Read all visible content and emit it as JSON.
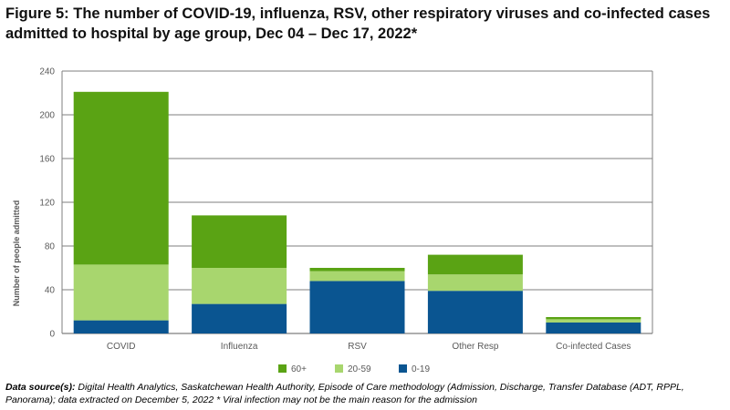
{
  "title": "Figure 5: The number of COVID-19, influenza, RSV, other respiratory viruses and co-infected cases admitted to hospital by age group, Dec 04 – Dec 17, 2022*",
  "source": {
    "label": "Data source(s):",
    "text": " Digital Health Analytics, Saskatchewan Health Authority, Episode of Care methodology (Admission, Discharge, Transfer Database (ADT, RPPL, Panorama); data extracted on December 5, 2022 * Viral infection may not be the main reason for the admission"
  },
  "colors": {
    "age_60_plus": "#5aa314",
    "age_20_59": "#a8d66e",
    "age_0_19": "#0a5591",
    "grid": "#7f7f7f",
    "axis_text": "#595959"
  },
  "chart_data": {
    "type": "bar",
    "stacked": true,
    "title": "",
    "xlabel": "",
    "ylabel": "Number of people admitted",
    "ylim": [
      0,
      240
    ],
    "yticks": [
      0,
      40,
      80,
      120,
      160,
      200,
      240
    ],
    "categories": [
      "COVID",
      "Influenza",
      "RSV",
      "Other Resp",
      "Co-infected Cases"
    ],
    "series": [
      {
        "name": "0-19",
        "color": "#0a5591",
        "values": [
          12,
          27,
          48,
          39,
          10
        ]
      },
      {
        "name": "20-59",
        "color": "#a8d66e",
        "values": [
          51,
          33,
          9,
          15,
          3
        ]
      },
      {
        "name": "60+",
        "color": "#5aa314",
        "values": [
          158,
          48,
          3,
          18,
          2
        ]
      }
    ],
    "legend": {
      "placement": "bottom-center",
      "order": [
        "60+",
        "20-59",
        "0-19"
      ]
    }
  }
}
